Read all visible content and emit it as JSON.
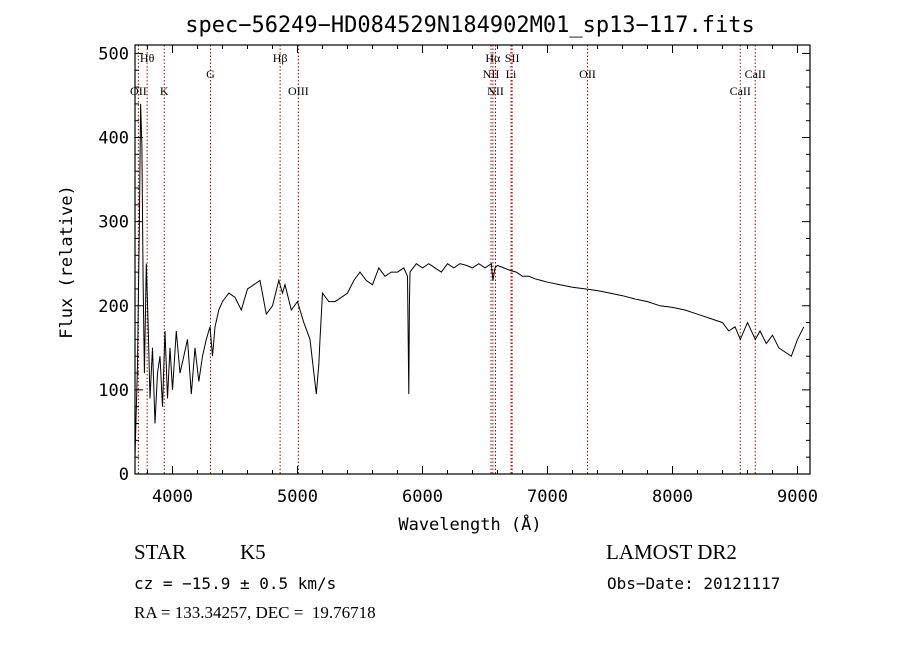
{
  "chart_data": {
    "type": "line",
    "title": "spec−56249−HD084529N184902M01_sp13−117.fits",
    "xlabel": "Wavelength (Å)",
    "ylabel": "Flux (relative)",
    "xlim": [
      3700,
      9100
    ],
    "ylim": [
      0,
      510
    ],
    "xticks": [
      4000,
      5000,
      6000,
      7000,
      8000,
      9000
    ],
    "yticks": [
      0,
      100,
      200,
      300,
      400,
      500
    ],
    "grid": false,
    "line_color": "#000000",
    "marker_color": "#aa0000",
    "series": [
      {
        "x": [
          3700,
          3720,
          3735,
          3745,
          3755,
          3765,
          3775,
          3790,
          3805,
          3820,
          3840,
          3860,
          3880,
          3900,
          3920,
          3940,
          3960,
          3980,
          4000,
          4030,
          4060,
          4090,
          4120,
          4150,
          4180,
          4210,
          4240,
          4270,
          4300,
          4320,
          4340,
          4370,
          4400,
          4450,
          4500,
          4550,
          4600,
          4650,
          4700,
          4750,
          4800,
          4850,
          4880,
          4900,
          4950,
          5000,
          5050,
          5100,
          5150,
          5170,
          5180,
          5200,
          5250,
          5300,
          5350,
          5400,
          5450,
          5500,
          5550,
          5600,
          5650,
          5700,
          5750,
          5800,
          5850,
          5880,
          5890,
          5895,
          5900,
          5950,
          6000,
          6050,
          6100,
          6150,
          6200,
          6250,
          6300,
          6350,
          6400,
          6450,
          6500,
          6550,
          6563,
          6580,
          6600,
          6650,
          6700,
          6750,
          6800,
          6850,
          6900,
          6950,
          7000,
          7100,
          7200,
          7300,
          7400,
          7500,
          7600,
          7700,
          7800,
          7900,
          8000,
          8100,
          8200,
          8300,
          8400,
          8450,
          8500,
          8542,
          8600,
          8662,
          8700,
          8750,
          8800,
          8850,
          8900,
          8950,
          9000,
          9050
        ],
        "y": [
          20,
          130,
          300,
          440,
          390,
          230,
          120,
          250,
          180,
          90,
          150,
          60,
          120,
          140,
          80,
          170,
          90,
          150,
          100,
          170,
          120,
          140,
          160,
          95,
          150,
          110,
          140,
          160,
          175,
          140,
          175,
          195,
          205,
          215,
          210,
          195,
          220,
          225,
          230,
          190,
          200,
          230,
          215,
          225,
          195,
          205,
          180,
          160,
          95,
          130,
          160,
          215,
          205,
          205,
          210,
          215,
          230,
          240,
          230,
          225,
          245,
          235,
          240,
          240,
          245,
          235,
          95,
          200,
          240,
          250,
          245,
          250,
          245,
          240,
          250,
          245,
          250,
          248,
          245,
          250,
          245,
          250,
          230,
          245,
          248,
          245,
          242,
          240,
          235,
          235,
          232,
          230,
          228,
          225,
          222,
          220,
          218,
          215,
          212,
          208,
          205,
          200,
          198,
          195,
          190,
          185,
          180,
          170,
          175,
          160,
          180,
          160,
          170,
          155,
          165,
          150,
          145,
          140,
          160,
          175
        ]
      }
    ],
    "lines": [
      {
        "label": "OII",
        "x": 3727,
        "row": "low"
      },
      {
        "label": "Hθ",
        "x": 3797,
        "row": "high"
      },
      {
        "label": "K",
        "x": 3934,
        "row": "low"
      },
      {
        "label": "G",
        "x": 4304,
        "row": "mid"
      },
      {
        "label": "Hβ",
        "x": 4861,
        "row": "high"
      },
      {
        "label": "OIII",
        "x": 5007,
        "row": "low"
      },
      {
        "label": "Hα",
        "x": 6563,
        "row": "high"
      },
      {
        "label": "NII",
        "x": 6548,
        "row": "mid"
      },
      {
        "label": "NII",
        "x": 6584,
        "row": "low"
      },
      {
        "label": "SII",
        "x": 6717,
        "row": "high"
      },
      {
        "label": "Li",
        "x": 6708,
        "row": "mid"
      },
      {
        "label": "OII",
        "x": 7320,
        "row": "mid"
      },
      {
        "label": "CaII",
        "x": 8542,
        "row": "low"
      },
      {
        "label": "CaII",
        "x": 8662,
        "row": "mid"
      }
    ]
  },
  "info": {
    "object_type": "STAR",
    "subclass": "K5",
    "survey": "LAMOST DR2",
    "cz_text": "cz = −15.9 ± 0.5 km/s",
    "obs_date": "Obs−Date: 20121117",
    "radec": "RA = 133.34257, DEC =  19.76718"
  }
}
